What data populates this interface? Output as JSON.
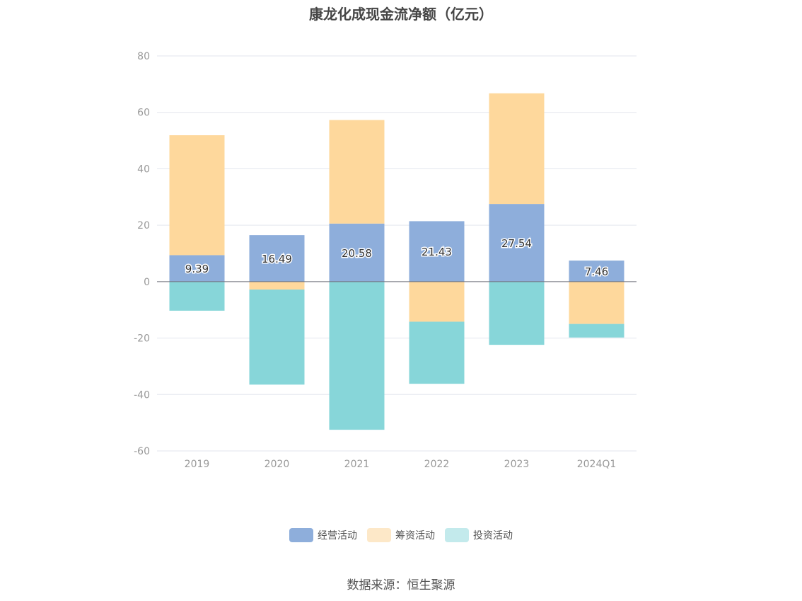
{
  "chart_data": {
    "type": "bar",
    "stacked": true,
    "title": "康龙化成现金流净额（亿元）",
    "categories": [
      "2019",
      "2020",
      "2021",
      "2022",
      "2023",
      "2024Q1"
    ],
    "ylim": [
      -60,
      80
    ],
    "yticks": [
      80,
      60,
      40,
      20,
      0,
      -20,
      -40,
      -60
    ],
    "grid": true,
    "legend_position": "bottom-center",
    "series": [
      {
        "name": "经营活动",
        "color": "#8eaedb",
        "values": [
          9.39,
          16.49,
          20.58,
          21.43,
          27.54,
          7.46
        ],
        "labels": [
          "9.39",
          "16.49",
          "20.58",
          "21.43",
          "27.54",
          "7.46"
        ]
      },
      {
        "name": "筹资活动",
        "color": "#fed89c",
        "values": [
          42.5,
          -2.8,
          36.7,
          -14.2,
          39.2,
          -15.0
        ]
      },
      {
        "name": "投资活动",
        "color": "#87d6d9",
        "values": [
          -10.3,
          -33.7,
          -52.5,
          -22.0,
          -22.4,
          -4.8
        ]
      }
    ],
    "legend_colors": {
      "经营活动": "#8eaedb",
      "筹资活动": "#fde8c8",
      "投资活动": "#c3eaec"
    }
  },
  "source": "数据来源：恒生聚源"
}
